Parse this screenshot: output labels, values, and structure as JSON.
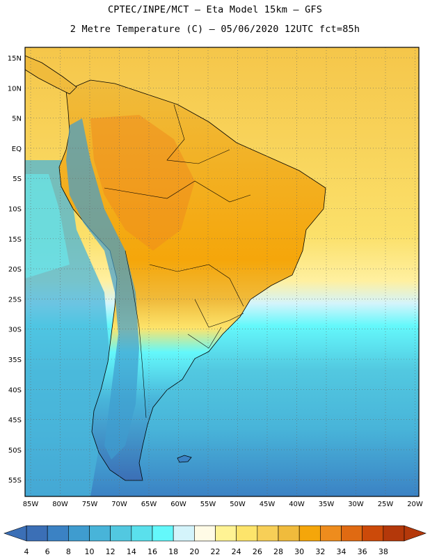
{
  "header": {
    "line1": "CPTEC/INPE/MCT –  Eta Model 15km – GFS",
    "line2": "2 Metre Temperature (C) – 05/06/2020 12UTC fct=85h"
  },
  "map": {
    "lat_labels": [
      "15N",
      "10N",
      "5N",
      "EQ",
      "5S",
      "10S",
      "15S",
      "20S",
      "25S",
      "30S",
      "35S",
      "40S",
      "45S",
      "50S",
      "55S"
    ],
    "lon_labels": [
      "85W",
      "80W",
      "75W",
      "70W",
      "65W",
      "60W",
      "55W",
      "50W",
      "45W",
      "40W",
      "35W",
      "30W",
      "25W",
      "20W"
    ]
  },
  "colorbar": {
    "ticks": [
      "4",
      "6",
      "8",
      "10",
      "12",
      "14",
      "16",
      "18",
      "20",
      "22",
      "24",
      "26",
      "28",
      "30",
      "32",
      "34",
      "36",
      "38"
    ],
    "colors": [
      "#3b6fb6",
      "#3b82c4",
      "#3f9ccf",
      "#48b4d9",
      "#52c8e0",
      "#5ae0ec",
      "#64f8fb",
      "#d4f4fb",
      "#fffbe6",
      "#fff394",
      "#fde46b",
      "#f7cf57",
      "#f0bb3c",
      "#f5a60a",
      "#ee8c1d",
      "#e06a12",
      "#cc4a09",
      "#b4380a"
    ]
  }
}
